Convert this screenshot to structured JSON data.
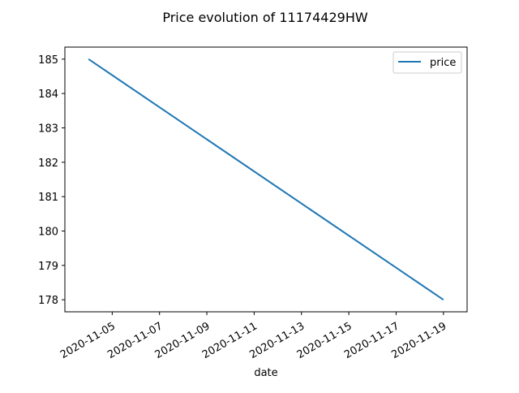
{
  "chart_data": {
    "type": "line",
    "title": "Price evolution of 11174429HW",
    "xlabel": "date",
    "ylabel": "",
    "x_start": "2020-11-04",
    "x_end": "2020-11-19",
    "xlim": [
      "2020-11-03",
      "2020-11-20"
    ],
    "ylim": [
      177.65,
      185.35
    ],
    "x_ticks": [
      "2020-11-05",
      "2020-11-07",
      "2020-11-09",
      "2020-11-11",
      "2020-11-13",
      "2020-11-15",
      "2020-11-17",
      "2020-11-19"
    ],
    "y_ticks": [
      178,
      179,
      180,
      181,
      182,
      183,
      184,
      185
    ],
    "grid": false,
    "legend_position": "top-right",
    "series": [
      {
        "name": "price",
        "color": "#1f77b4",
        "x": [
          "2020-11-04",
          "2020-11-19"
        ],
        "values": [
          185,
          178
        ]
      }
    ]
  }
}
